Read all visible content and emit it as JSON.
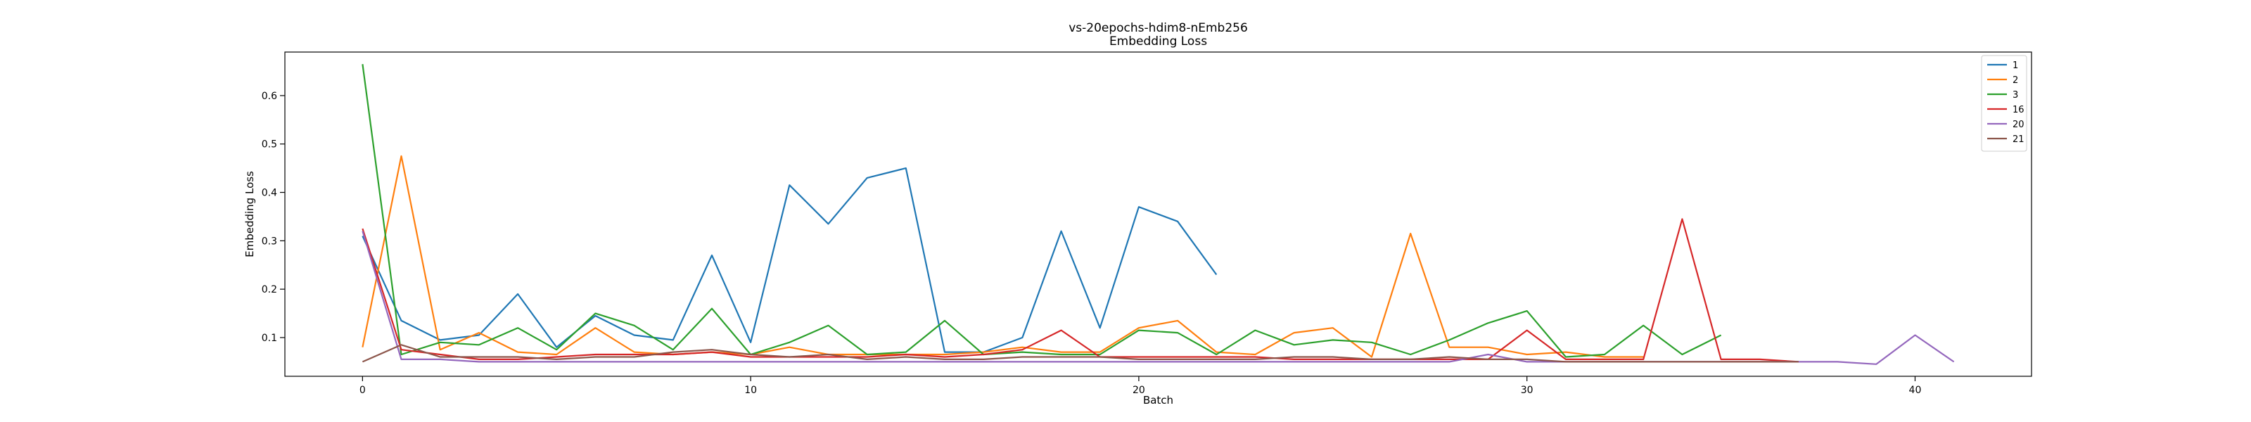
{
  "chart_data": {
    "type": "line",
    "title": "vs-20epochs-hdim8-nEmb256",
    "subtitle": "Embedding Loss",
    "xlabel": "Batch",
    "ylabel": "Embedding Loss",
    "xlim": [
      -2,
      43
    ],
    "ylim": [
      0.02,
      0.69
    ],
    "xticks": [
      0,
      10,
      20,
      30,
      40
    ],
    "yticks": [
      0.1,
      0.2,
      0.3,
      0.4,
      0.5,
      0.6
    ],
    "xtick_labels": [
      "0",
      "10",
      "20",
      "30",
      "40"
    ],
    "ytick_labels": [
      "0.1",
      "0.2",
      "0.3",
      "0.4",
      "0.5",
      "0.6"
    ],
    "grid": false,
    "legend_position": "top-right",
    "series": [
      {
        "name": "1",
        "color": "#1f77b4",
        "x": [
          0,
          1,
          2,
          3,
          4,
          5,
          6,
          7,
          8,
          9,
          10,
          11,
          12,
          13,
          14,
          15,
          16,
          17,
          18,
          19,
          20,
          21,
          22
        ],
        "y": [
          0.31,
          0.135,
          0.095,
          0.105,
          0.19,
          0.08,
          0.145,
          0.105,
          0.095,
          0.27,
          0.09,
          0.415,
          0.335,
          0.43,
          0.45,
          0.07,
          0.07,
          0.1,
          0.32,
          0.12,
          0.37,
          0.34,
          0.23
        ]
      },
      {
        "name": "2",
        "color": "#ff7f0e",
        "x": [
          0,
          1,
          2,
          3,
          4,
          5,
          6,
          7,
          8,
          9,
          10,
          11,
          12,
          13,
          14,
          15,
          16,
          17,
          18,
          19,
          20,
          21,
          22,
          23,
          24,
          25,
          26,
          27,
          28,
          29,
          30,
          31,
          32,
          33
        ],
        "y": [
          0.08,
          0.475,
          0.075,
          0.11,
          0.07,
          0.065,
          0.12,
          0.07,
          0.065,
          0.07,
          0.065,
          0.08,
          0.065,
          0.065,
          0.065,
          0.065,
          0.07,
          0.08,
          0.07,
          0.07,
          0.12,
          0.135,
          0.07,
          0.065,
          0.11,
          0.12,
          0.06,
          0.315,
          0.08,
          0.08,
          0.065,
          0.07,
          0.06,
          0.06
        ]
      },
      {
        "name": "3",
        "color": "#2ca02c",
        "x": [
          0,
          1,
          2,
          3,
          4,
          5,
          6,
          7,
          8,
          9,
          10,
          11,
          12,
          13,
          14,
          15,
          16,
          17,
          18,
          19,
          20,
          21,
          22,
          23,
          24,
          25,
          26,
          27,
          28,
          29,
          30,
          31,
          32,
          33,
          34,
          35
        ],
        "y": [
          0.665,
          0.065,
          0.09,
          0.085,
          0.12,
          0.075,
          0.15,
          0.125,
          0.075,
          0.16,
          0.065,
          0.09,
          0.125,
          0.065,
          0.07,
          0.135,
          0.065,
          0.07,
          0.065,
          0.065,
          0.115,
          0.11,
          0.065,
          0.115,
          0.085,
          0.095,
          0.09,
          0.065,
          0.095,
          0.13,
          0.155,
          0.06,
          0.065,
          0.125,
          0.065,
          0.105
        ]
      },
      {
        "name": "16",
        "color": "#d62728",
        "x": [
          0,
          1,
          2,
          3,
          4,
          5,
          6,
          7,
          8,
          9,
          10,
          11,
          12,
          13,
          14,
          15,
          16,
          17,
          18,
          19,
          20,
          21,
          22,
          23,
          24,
          25,
          26,
          27,
          28,
          29,
          30,
          31,
          32,
          33,
          34,
          35,
          36,
          37
        ],
        "y": [
          0.325,
          0.075,
          0.065,
          0.055,
          0.055,
          0.06,
          0.065,
          0.065,
          0.065,
          0.07,
          0.06,
          0.06,
          0.06,
          0.06,
          0.065,
          0.06,
          0.065,
          0.075,
          0.115,
          0.06,
          0.06,
          0.06,
          0.06,
          0.06,
          0.055,
          0.055,
          0.055,
          0.055,
          0.055,
          0.055,
          0.115,
          0.055,
          0.055,
          0.055,
          0.345,
          0.055,
          0.055,
          0.05
        ]
      },
      {
        "name": "20",
        "color": "#9467bd",
        "x": [
          0,
          1,
          2,
          3,
          4,
          5,
          6,
          7,
          8,
          9,
          10,
          11,
          12,
          13,
          14,
          15,
          16,
          17,
          18,
          19,
          20,
          21,
          22,
          23,
          24,
          25,
          26,
          27,
          28,
          29,
          30,
          31,
          32,
          33,
          34,
          35,
          36,
          37,
          38,
          39,
          40,
          41
        ],
        "y": [
          0.32,
          0.055,
          0.055,
          0.05,
          0.05,
          0.05,
          0.05,
          0.05,
          0.05,
          0.05,
          0.05,
          0.05,
          0.05,
          0.05,
          0.05,
          0.05,
          0.05,
          0.05,
          0.05,
          0.05,
          0.05,
          0.05,
          0.05,
          0.05,
          0.05,
          0.05,
          0.05,
          0.05,
          0.05,
          0.065,
          0.05,
          0.05,
          0.05,
          0.05,
          0.05,
          0.05,
          0.05,
          0.05,
          0.05,
          0.045,
          0.105,
          0.05
        ]
      },
      {
        "name": "21",
        "color": "#8c564b",
        "x": [
          0,
          1,
          2,
          3,
          4,
          5,
          6,
          7,
          8,
          9,
          10,
          11,
          12,
          13,
          14,
          15,
          16,
          17,
          18,
          19,
          20,
          21,
          22,
          23,
          24,
          25,
          26,
          27,
          28,
          29,
          30,
          31,
          32,
          33,
          34,
          35,
          36,
          37
        ],
        "y": [
          0.05,
          0.085,
          0.06,
          0.06,
          0.06,
          0.055,
          0.06,
          0.06,
          0.07,
          0.075,
          0.065,
          0.06,
          0.065,
          0.055,
          0.06,
          0.055,
          0.055,
          0.06,
          0.06,
          0.06,
          0.055,
          0.055,
          0.055,
          0.055,
          0.06,
          0.06,
          0.055,
          0.055,
          0.06,
          0.055,
          0.055,
          0.05,
          0.05,
          0.05,
          0.05,
          0.05,
          0.05,
          0.05
        ]
      }
    ]
  }
}
